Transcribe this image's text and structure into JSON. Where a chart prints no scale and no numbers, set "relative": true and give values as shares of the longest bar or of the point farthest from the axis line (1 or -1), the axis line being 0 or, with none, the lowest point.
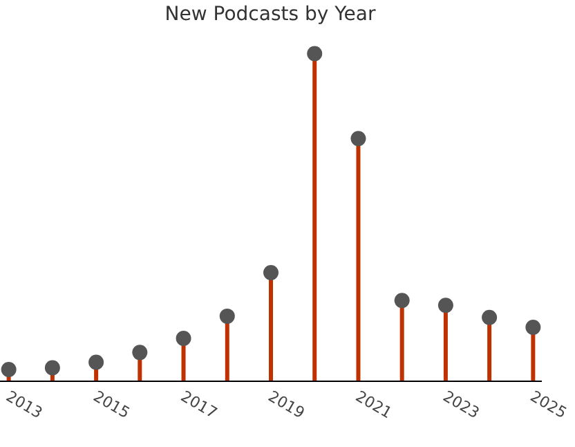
{
  "chart_data": {
    "type": "lollipop",
    "title": "New Podcasts by Year",
    "relative": true,
    "x": [
      2013,
      2014,
      2015,
      2016,
      2017,
      2018,
      2019,
      2020,
      2021,
      2022,
      2023,
      2024,
      2025
    ],
    "xlim": [
      2012.8,
      2025.2
    ],
    "xticks": [
      2013,
      2015,
      2017,
      2019,
      2021,
      2023,
      2025
    ],
    "series": [
      {
        "color": "#555555",
        "values": [
          0.034,
          0.039,
          0.056,
          0.086,
          0.129,
          0.197,
          0.33,
          1,
          0.74,
          0.245,
          0.23,
          0.193,
          0.163
        ]
      }
    ],
    "marker": "circle",
    "grid": false
  }
}
